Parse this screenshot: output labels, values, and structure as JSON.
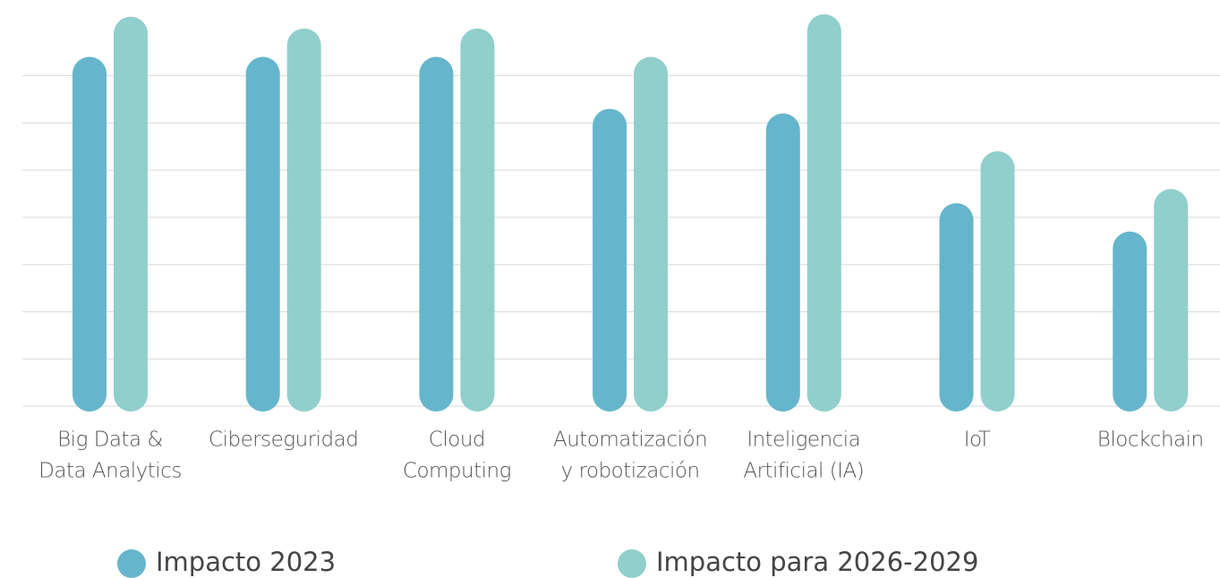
{
  "chart_data": {
    "type": "bar",
    "categories": [
      [
        "Big Data &",
        "Data Analytics"
      ],
      [
        "Ciberseguridad"
      ],
      [
        "Cloud",
        "Computing"
      ],
      [
        "Automatización",
        "y robotización"
      ],
      [
        "Inteligencia",
        "Artificial (IA)"
      ],
      [
        "IoT"
      ],
      [
        "Blockchain"
      ]
    ],
    "series": [
      {
        "name": "Impacto 2023",
        "color": "#65b6cc",
        "values": [
          7.4,
          7.4,
          7.4,
          6.3,
          6.2,
          4.3,
          3.7
        ]
      },
      {
        "name": "Impacto para 2026-2029",
        "color": "#90cfcb",
        "values": [
          8.25,
          8.0,
          8.0,
          7.4,
          8.3,
          5.4,
          4.6
        ]
      }
    ],
    "ylim": [
      0,
      8.6
    ],
    "yticks": [
      0,
      1,
      2,
      3,
      4,
      5,
      6,
      7
    ],
    "grid": true,
    "legend": "bottom"
  }
}
